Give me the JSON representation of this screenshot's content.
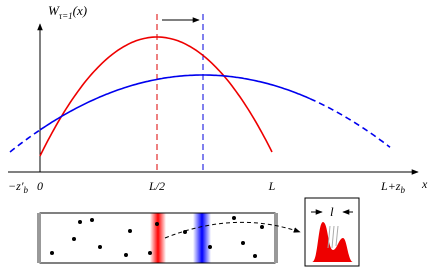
{
  "y_axis_label": {
    "main": "W",
    "sub": "τ=1",
    "suffix": "(x)"
  },
  "x_axis_label": "x",
  "x_ticks": [
    {
      "main": "−z′",
      "sub": "b"
    },
    {
      "main": "0",
      "sub": ""
    },
    {
      "main": "L/2",
      "sub": ""
    },
    {
      "main": "L",
      "sub": ""
    },
    {
      "main": "L+z",
      "sub": "b"
    }
  ],
  "inset_label": "l"
}
